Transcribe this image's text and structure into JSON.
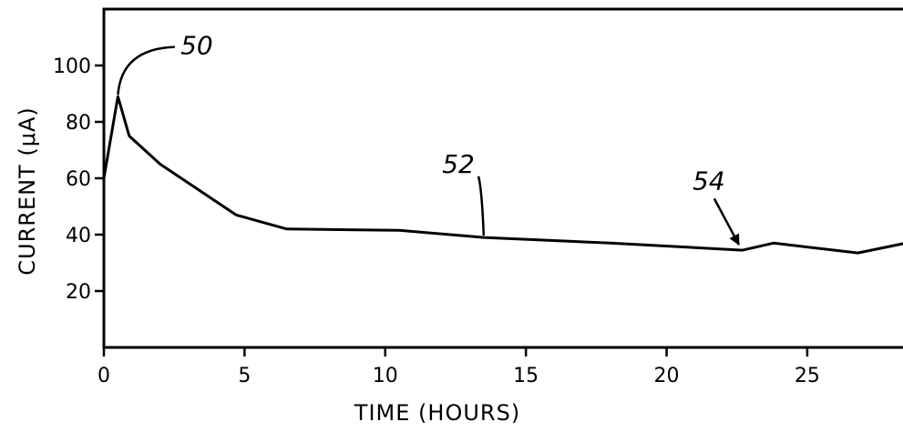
{
  "chart_data": {
    "type": "line",
    "title": "",
    "xlabel": "TIME (HOURS)",
    "ylabel": "CURRENT (μA)",
    "xlim": [
      0,
      28.5
    ],
    "ylim": [
      0,
      120
    ],
    "xticks": [
      {
        "value": 0,
        "label": "0"
      },
      {
        "value": 5,
        "label": "5"
      },
      {
        "value": 10,
        "label": "10"
      },
      {
        "value": 15,
        "label": "15"
      },
      {
        "value": 20,
        "label": "20"
      },
      {
        "value": 25,
        "label": "25"
      }
    ],
    "yticks": [
      {
        "value": 20,
        "label": "20"
      },
      {
        "value": 40,
        "label": "40"
      },
      {
        "value": 60,
        "label": "60"
      },
      {
        "value": 80,
        "label": "80"
      },
      {
        "value": 100,
        "label": "100"
      }
    ],
    "grid": false,
    "series": [
      {
        "x": [
          0,
          0.5,
          0.9,
          2,
          3.5,
          4.7,
          6.5,
          10.5,
          13.5,
          18,
          22.7,
          23.8,
          26.8,
          28.5
        ],
        "y": [
          60,
          89,
          75,
          65,
          55,
          47,
          42,
          41.5,
          39,
          37,
          34.5,
          37,
          33.5,
          37
        ]
      }
    ],
    "annotations": [
      {
        "label": "50",
        "target": [
          0.5,
          89
        ],
        "text_at": [
          3.3,
          104
        ],
        "leader": "curve"
      },
      {
        "label": "52",
        "target": [
          13.5,
          39
        ],
        "text_at": [
          12.6,
          62
        ],
        "leader": "curve"
      },
      {
        "label": "54",
        "target": [
          22.7,
          34.5
        ],
        "text_at": [
          21.5,
          56
        ],
        "leader": "arrow"
      }
    ]
  }
}
